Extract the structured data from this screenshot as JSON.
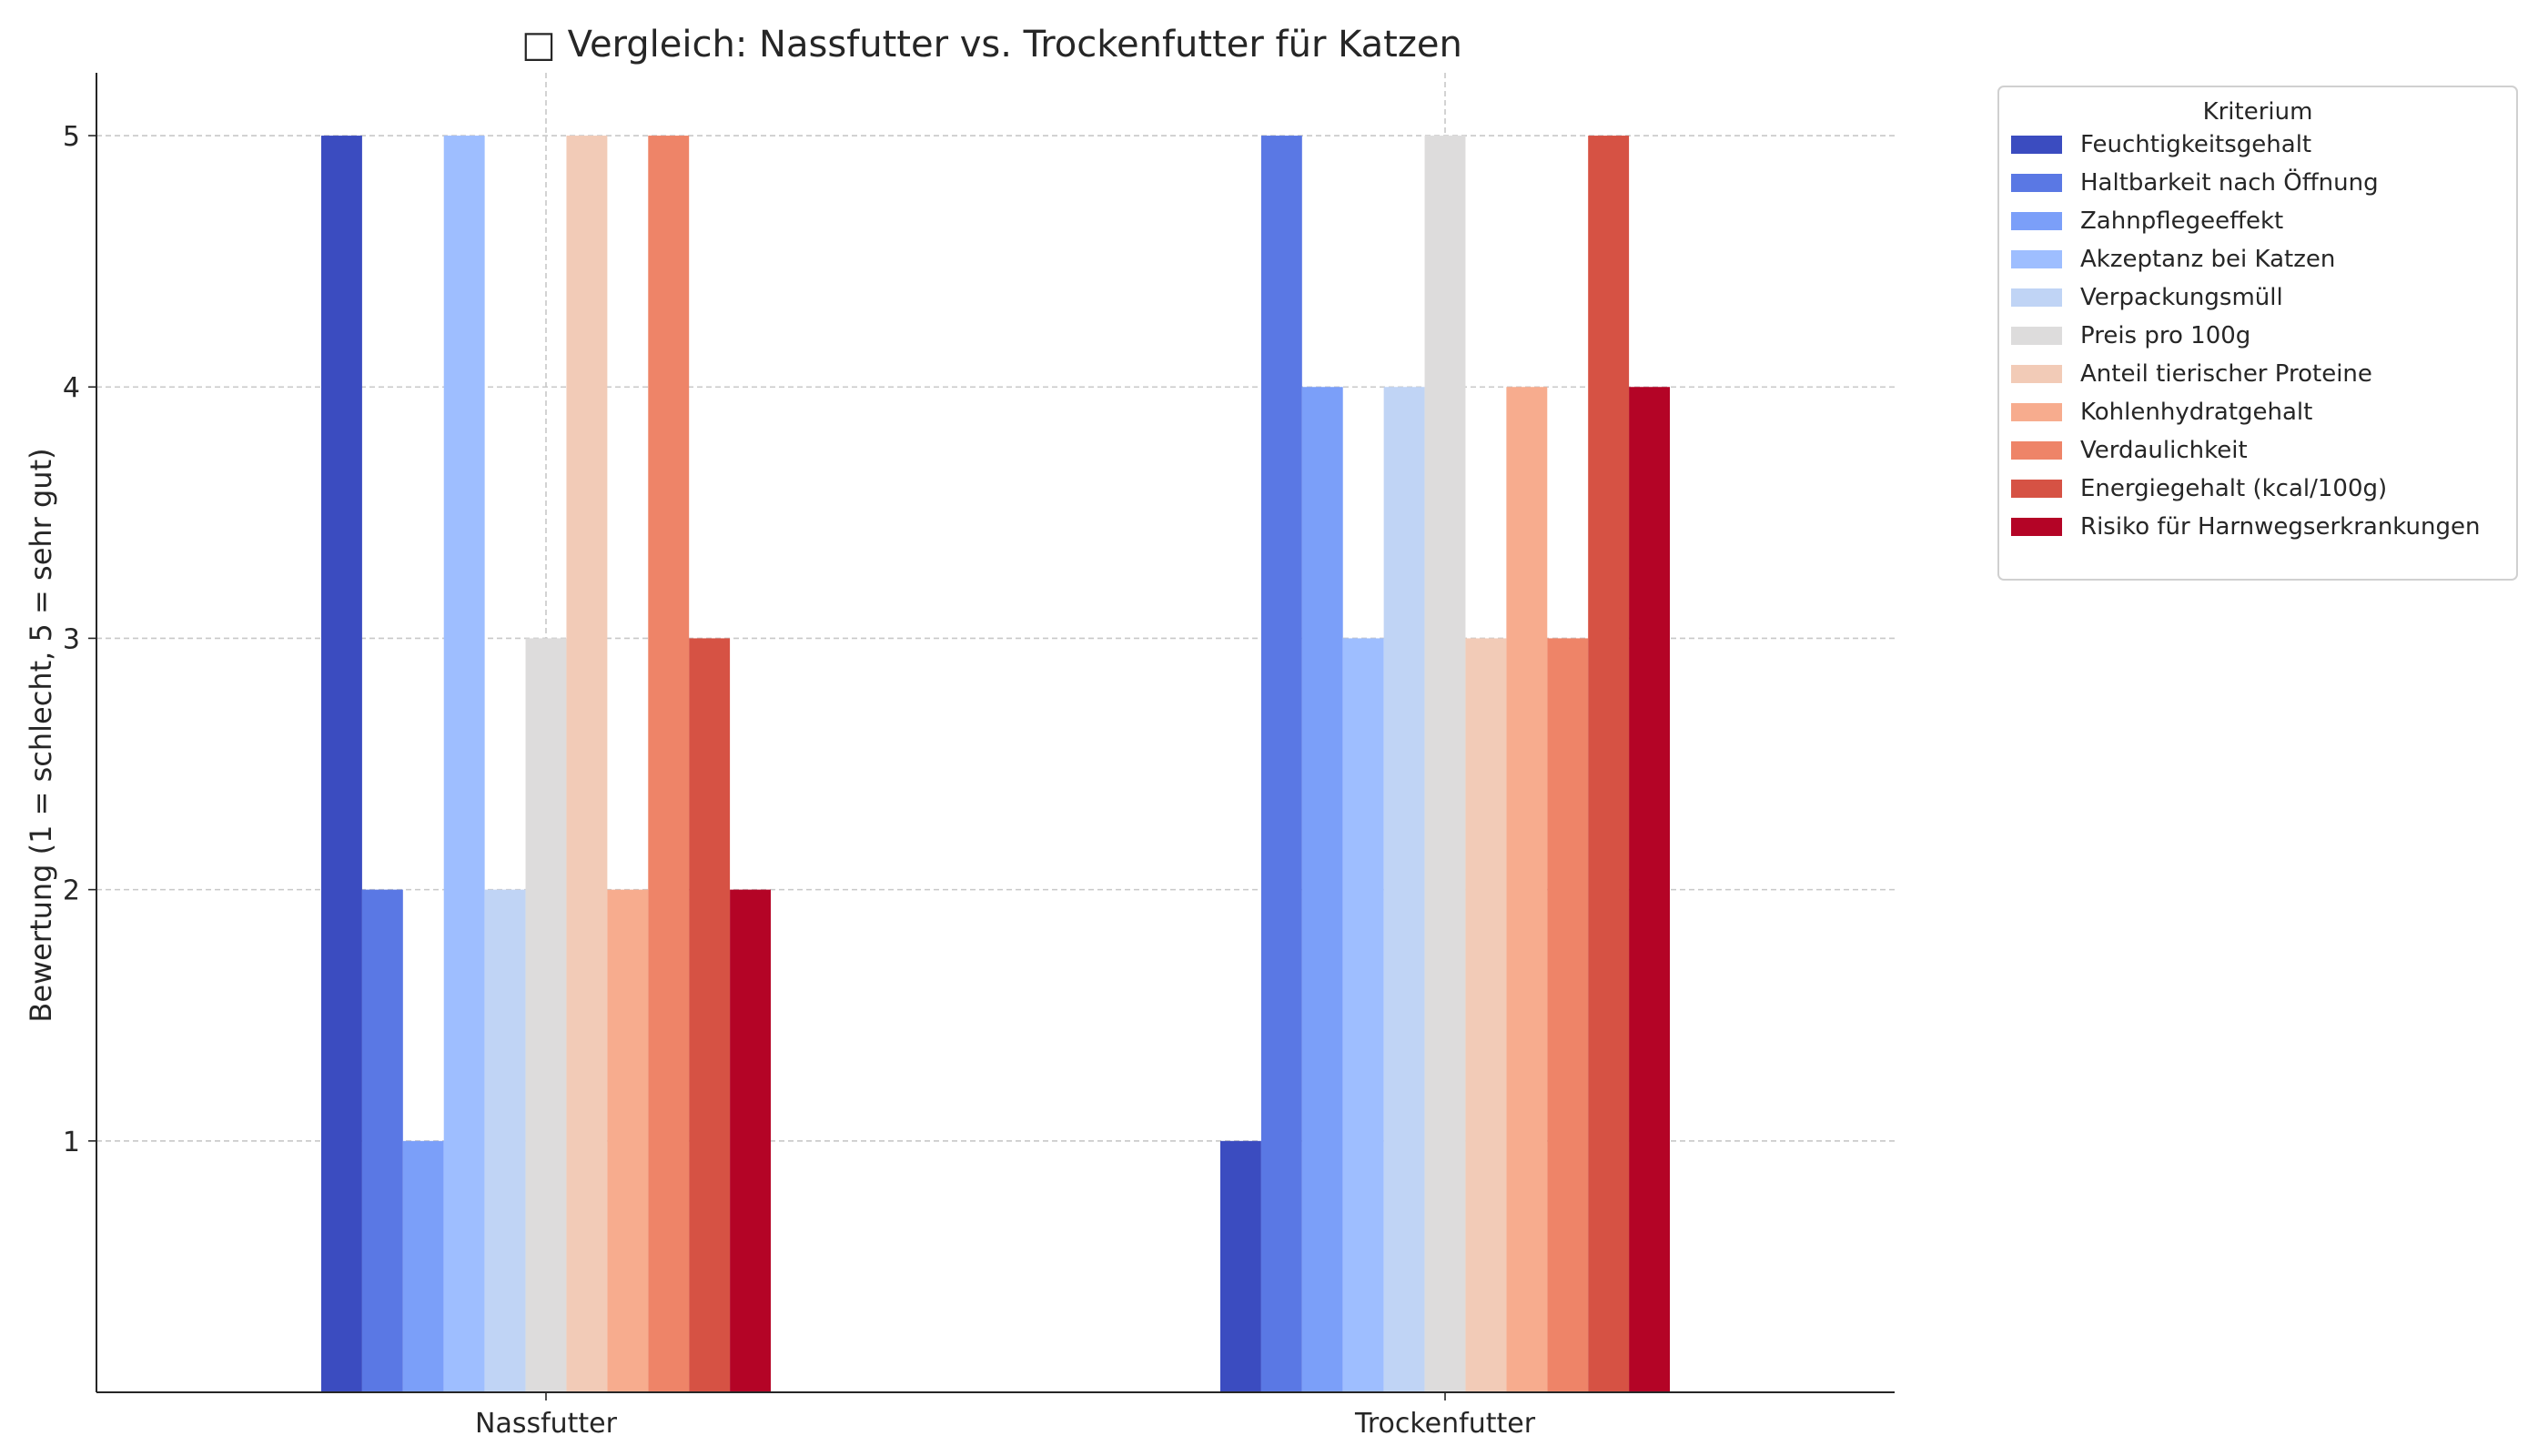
{
  "chart_data": {
    "type": "bar",
    "title": "□ Vergleich: Nassfutter vs. Trockenfutter für Katzen",
    "xlabel": "",
    "ylabel": "Bewertung (1 = schlecht, 5 = sehr gut)",
    "categories": [
      "Nassfutter",
      "Trockenfutter"
    ],
    "yticks": [
      "1",
      "2",
      "3",
      "4",
      "5"
    ],
    "ylim": [
      0,
      5.25
    ],
    "grid": true,
    "legend_title": "Kriterium",
    "legend_position": "outside-right",
    "series": [
      {
        "name": "Feuchtigkeitsgehalt",
        "color": "#3b4cc0",
        "values": [
          5,
          1
        ]
      },
      {
        "name": "Haltbarkeit nach Öffnung",
        "color": "#5a78e4",
        "values": [
          2,
          5
        ]
      },
      {
        "name": "Zahnpflegeeffekt",
        "color": "#7b9ff9",
        "values": [
          1,
          4
        ]
      },
      {
        "name": "Akzeptanz bei Katzen",
        "color": "#9ebeff",
        "values": [
          5,
          3
        ]
      },
      {
        "name": "Verpackungsmüll",
        "color": "#c0d4f5",
        "values": [
          2,
          4
        ]
      },
      {
        "name": "Preis pro 100g",
        "color": "#dddcdc",
        "values": [
          3,
          5
        ]
      },
      {
        "name": "Anteil tierischer Proteine",
        "color": "#f2cbb7",
        "values": [
          5,
          3
        ]
      },
      {
        "name": "Kohlenhydratgehalt",
        "color": "#f7ac8e",
        "values": [
          2,
          4
        ]
      },
      {
        "name": "Verdaulichkeit",
        "color": "#ee8468",
        "values": [
          5,
          3
        ]
      },
      {
        "name": "Energiegehalt (kcal/100g)",
        "color": "#d65244",
        "values": [
          3,
          5
        ]
      },
      {
        "name": "Risiko für Harnwegserkrankungen",
        "color": "#b40426",
        "values": [
          2,
          4
        ]
      }
    ]
  }
}
